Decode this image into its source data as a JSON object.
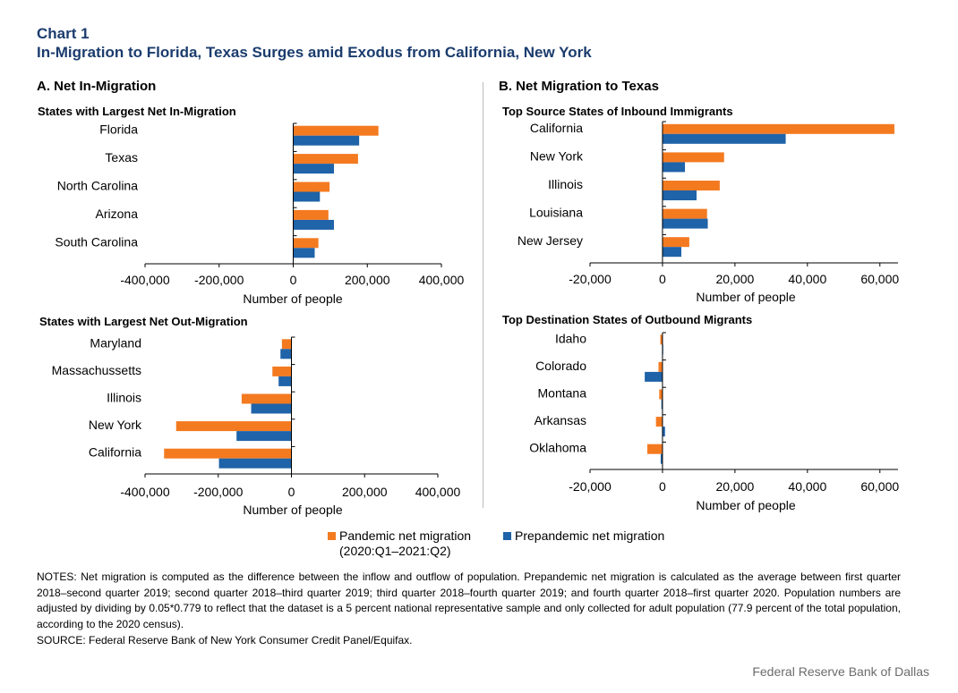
{
  "header": {
    "chart_number": "Chart 1",
    "title": "In-Migration to Florida, Texas Surges amid Exodus from California, New York"
  },
  "panel_a": {
    "title": "A. Net In-Migration"
  },
  "panel_b": {
    "title": "B. Net Migration to Texas"
  },
  "colors": {
    "pandemic": "#f47a20",
    "prepandemic": "#1f63a8",
    "title": "#1b3c6e"
  },
  "legend": {
    "pandemic_line1": "Pandemic net migration",
    "pandemic_line2": "(2020:Q1–2021:Q2)",
    "prepandemic": "Prepandemic net migration"
  },
  "notes": "NOTES: Net migration is computed as the difference between the inflow and outflow of population. Prepandemic net migration is calculated as the average between first quarter 2018–second quarter 2019; second quarter 2018–third quarter 2019; third quarter 2018–fourth quarter 2019; and fourth quarter 2018–first quarter 2020. Population numbers are adjusted by dividing by 0.05*0.779 to reflect that the dataset is a 5 percent national representative sample and only collected for adult population (77.9 percent of the total population, according to the 2020 census).",
  "source": "SOURCE: Federal Reserve Bank of New York Consumer Credit Panel/Equifax.",
  "credit": "Federal Reserve Bank of Dallas",
  "chart_data": [
    {
      "type": "bar",
      "orientation": "horizontal",
      "title": "States with Largest Net In-Migration",
      "xlabel": "Number of people",
      "categories": [
        "Florida",
        "Texas",
        "North Carolina",
        "Arizona",
        "South Carolina"
      ],
      "xlim": [
        -400000,
        400000
      ],
      "ticks": [
        -400000,
        -200000,
        0,
        200000,
        400000
      ],
      "tick_labels": [
        "-400,000",
        "-200,000",
        "0",
        "200,000",
        "400,000"
      ],
      "series": [
        {
          "name": "Pandemic net migration (2020:Q1–2021:Q2)",
          "values": [
            230000,
            175000,
            98000,
            95000,
            68000
          ]
        },
        {
          "name": "Prepandemic net migration",
          "values": [
            178000,
            110000,
            72000,
            110000,
            58000
          ]
        }
      ]
    },
    {
      "type": "bar",
      "orientation": "horizontal",
      "title": "Top Source States of Inbound Immigrants",
      "xlabel": "Number of people",
      "categories": [
        "California",
        "New York",
        "Illinois",
        "Louisiana",
        "New Jersey"
      ],
      "xlim": [
        -20000,
        65000
      ],
      "ticks": [
        -20000,
        0,
        20000,
        40000,
        60000
      ],
      "tick_labels": [
        "-20,000",
        "0",
        "20,000",
        "40,000",
        "60,000"
      ],
      "series": [
        {
          "name": "Pandemic net migration (2020:Q1–2021:Q2)",
          "values": [
            64000,
            17000,
            15800,
            12300,
            7400
          ]
        },
        {
          "name": "Prepandemic net migration",
          "values": [
            34000,
            6200,
            9400,
            12500,
            5200
          ]
        }
      ]
    },
    {
      "type": "bar",
      "orientation": "horizontal",
      "title": "States with Largest Net Out-Migration",
      "xlabel": "Number of people",
      "categories": [
        "Maryland",
        "Massachussetts",
        "Illinois",
        "New York",
        "California"
      ],
      "xlim": [
        -400000,
        400000
      ],
      "ticks": [
        -400000,
        -200000,
        0,
        200000,
        400000
      ],
      "tick_labels": [
        "-400,000",
        "-200,000",
        "0",
        "200,000",
        "400,000"
      ],
      "series": [
        {
          "name": "Pandemic net migration (2020:Q1–2021:Q2)",
          "values": [
            -26000,
            -52000,
            -136000,
            -315000,
            -348000
          ]
        },
        {
          "name": "Prepandemic net migration",
          "values": [
            -30000,
            -35000,
            -110000,
            -150000,
            -198000
          ]
        }
      ]
    },
    {
      "type": "bar",
      "orientation": "horizontal",
      "title": "Top Destination States of Outbound Migrants",
      "xlabel": "Number of people",
      "categories": [
        "Idaho",
        "Colorado",
        "Montana",
        "Arkansas",
        "Oklahoma"
      ],
      "xlim": [
        -20000,
        65000
      ],
      "ticks": [
        -20000,
        0,
        20000,
        40000,
        60000
      ],
      "tick_labels": [
        "-20,000",
        "0",
        "20,000",
        "40,000",
        "60,000"
      ],
      "series": [
        {
          "name": "Pandemic net migration (2020:Q1–2021:Q2)",
          "values": [
            -600,
            -1100,
            -900,
            -1800,
            -4200
          ]
        },
        {
          "name": "Prepandemic net migration",
          "values": [
            0,
            -4900,
            -300,
            700,
            -500
          ]
        }
      ]
    }
  ]
}
